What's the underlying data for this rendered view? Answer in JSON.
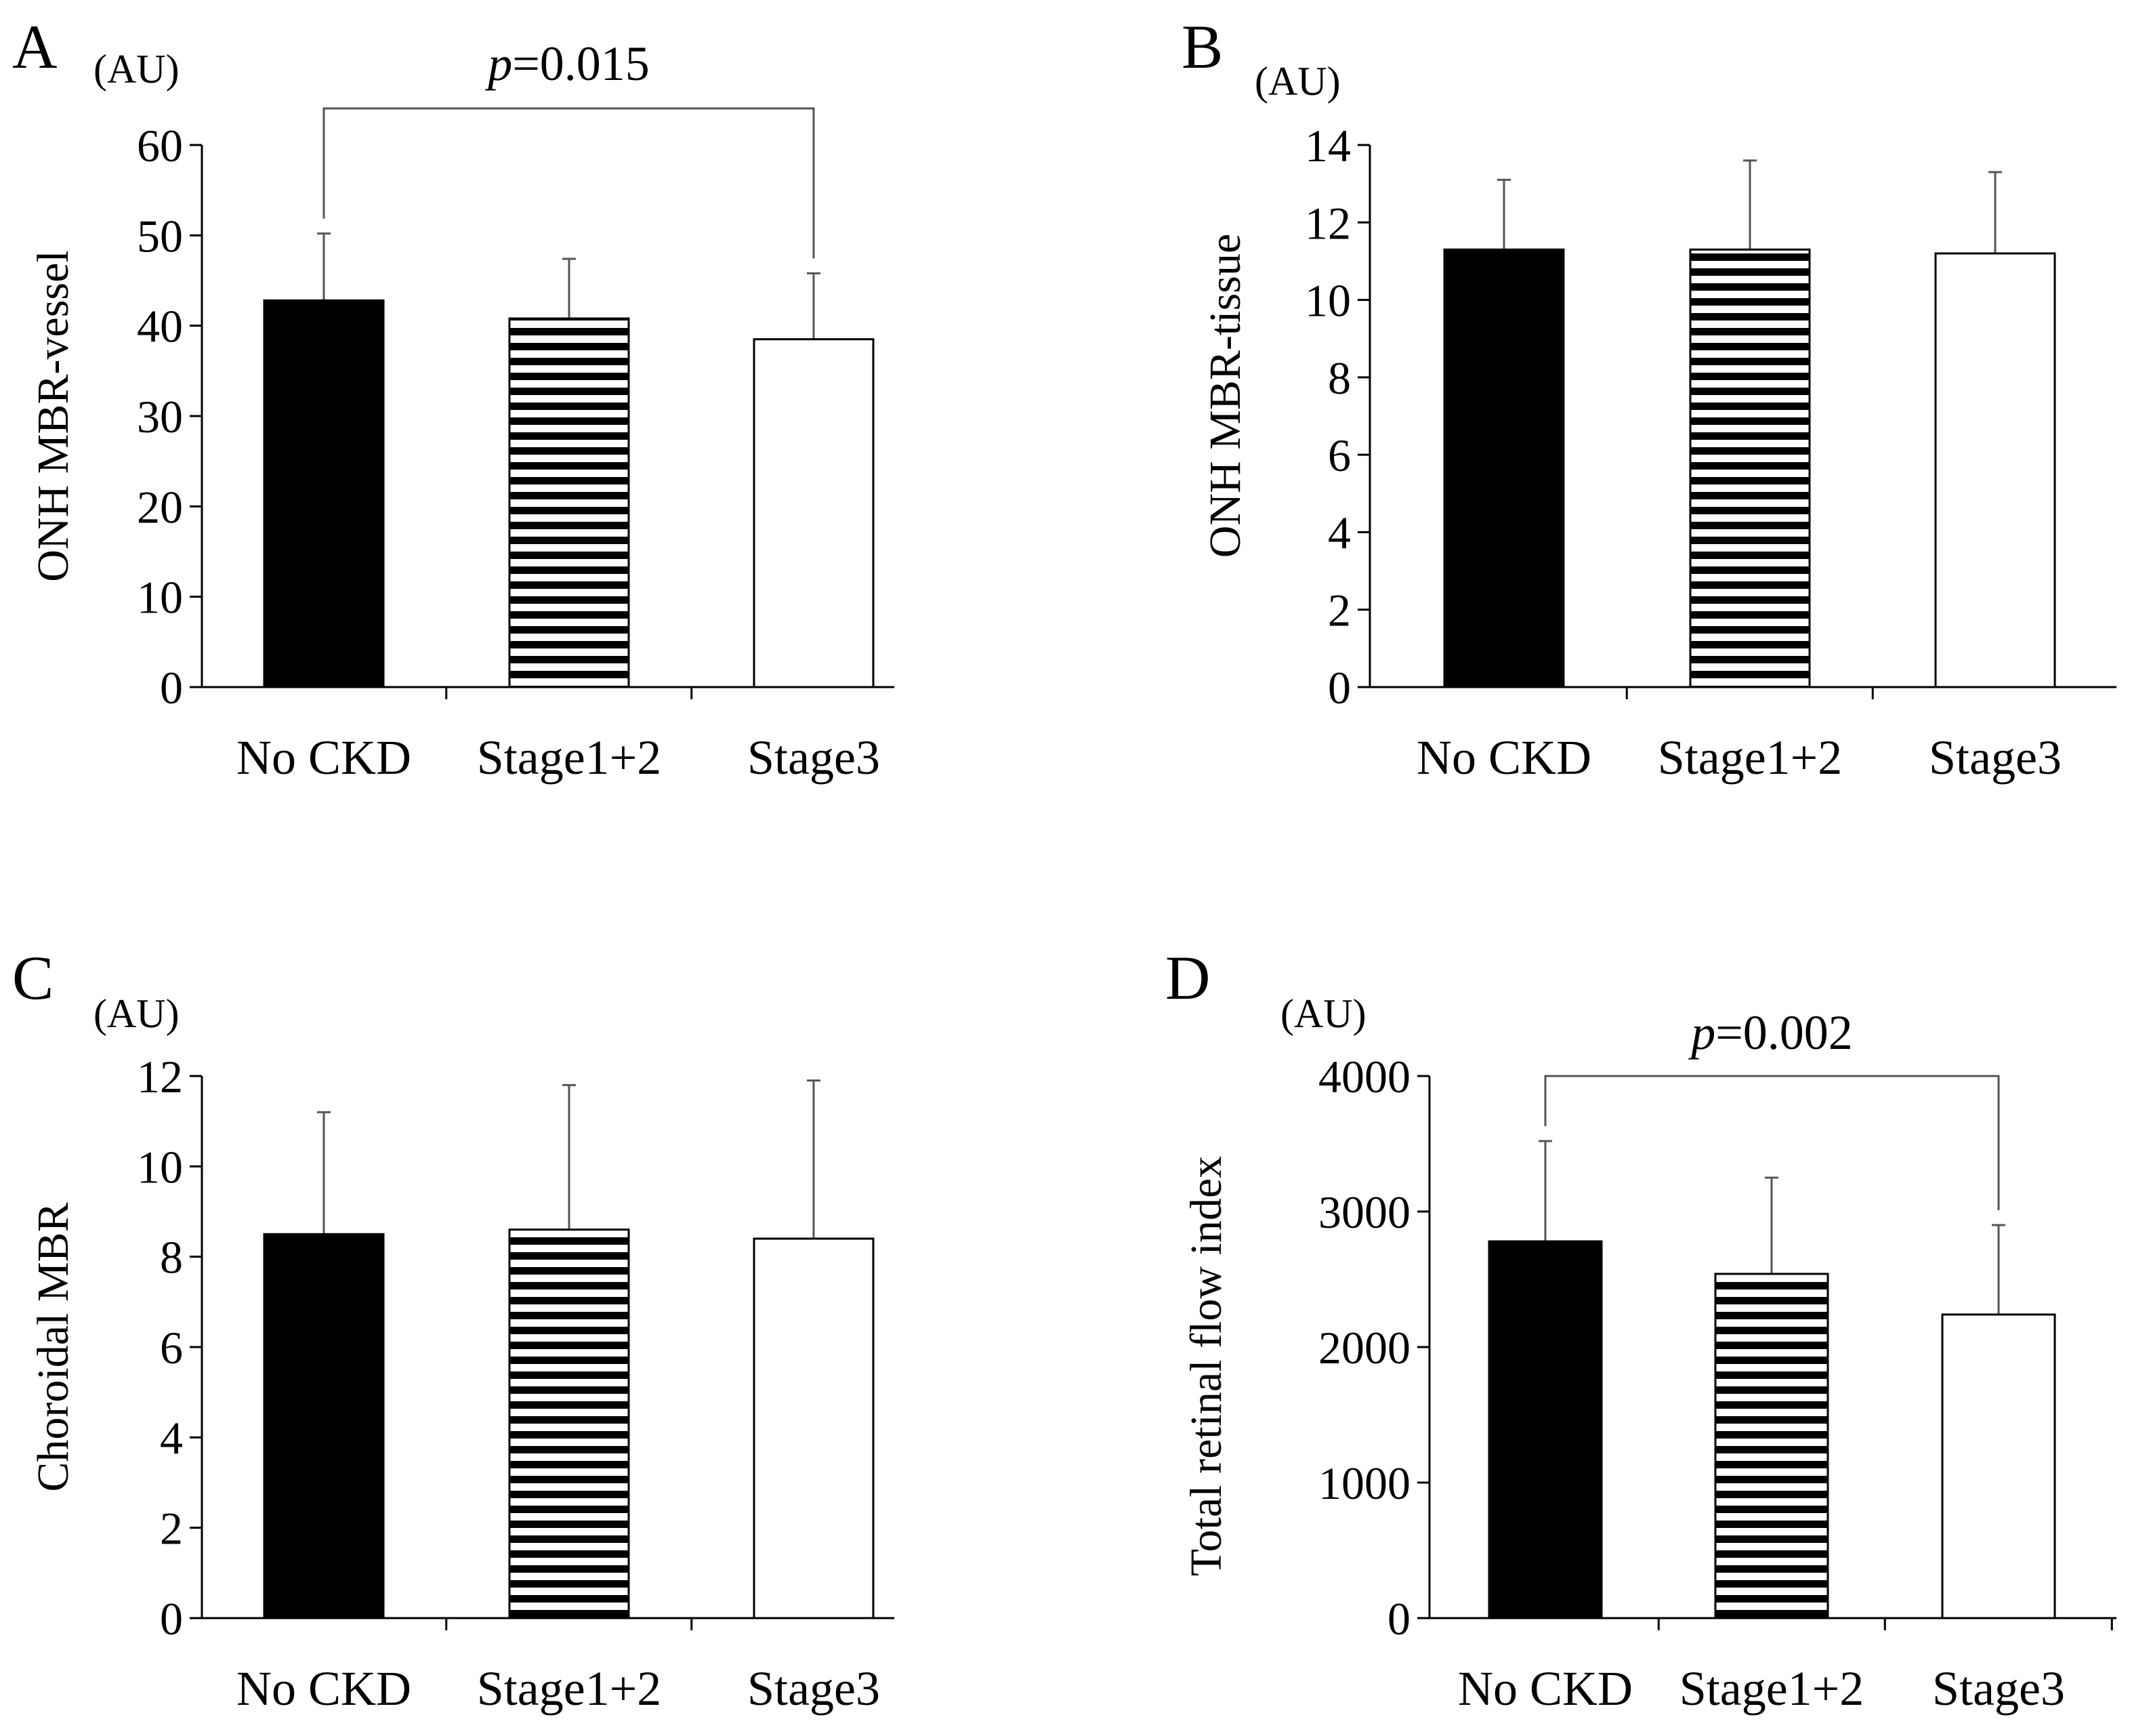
{
  "chart_data": [
    {
      "type": "bar",
      "panel": "A",
      "unit": "(AU)",
      "ylabel": "ONH MBR-vessel",
      "categories": [
        "No CKD",
        "Stage1+2",
        "Stage3"
      ],
      "values": [
        42.8,
        40.8,
        38.5
      ],
      "error": [
        7.4,
        6.6,
        7.3
      ],
      "ylim": [
        0,
        60
      ],
      "yticks": [
        0,
        10,
        20,
        30,
        40,
        50,
        60
      ],
      "fills": [
        "solid",
        "hstripe",
        "empty"
      ],
      "significance": {
        "from": 0,
        "to": 2,
        "italic": "p",
        "text": "=0.015"
      }
    },
    {
      "type": "bar",
      "panel": "B",
      "unit": "(AU)",
      "ylabel": "ONH MBR-tissue",
      "categories": [
        "No CKD",
        "Stage1+2",
        "Stage3"
      ],
      "values": [
        11.3,
        11.3,
        11.2
      ],
      "error": [
        1.8,
        2.3,
        2.1
      ],
      "ylim": [
        0,
        14
      ],
      "yticks": [
        0,
        2,
        4,
        6,
        8,
        10,
        12,
        14
      ],
      "fills": [
        "solid",
        "hstripe",
        "empty"
      ]
    },
    {
      "type": "bar",
      "panel": "C",
      "unit": "(AU)",
      "ylabel": "Choroidal MBR",
      "categories": [
        "No CKD",
        "Stage1+2",
        "Stage3"
      ],
      "values": [
        8.5,
        8.6,
        8.4
      ],
      "error": [
        2.7,
        3.2,
        3.5
      ],
      "ylim": [
        0,
        12
      ],
      "yticks": [
        0,
        2,
        4,
        6,
        8,
        10,
        12
      ],
      "fills": [
        "solid",
        "hstripe",
        "empty"
      ]
    },
    {
      "type": "bar",
      "panel": "D",
      "unit": "(AU)",
      "ylabel": "Total retinal flow index",
      "categories": [
        "No CKD",
        "Stage1+2",
        "Stage3"
      ],
      "values": [
        2780,
        2540,
        2240
      ],
      "error": [
        740,
        710,
        660
      ],
      "ylim": [
        0,
        4000
      ],
      "yticks": [
        0,
        1000,
        2000,
        3000,
        4000
      ],
      "fills": [
        "solid",
        "hstripe",
        "empty"
      ],
      "significance": {
        "from": 0,
        "to": 2,
        "italic": "p",
        "text": "=0.002"
      }
    }
  ],
  "colors": {
    "ink": "#000000",
    "background": "#ffffff",
    "axis": "#000000",
    "errorbar": "#555555"
  }
}
